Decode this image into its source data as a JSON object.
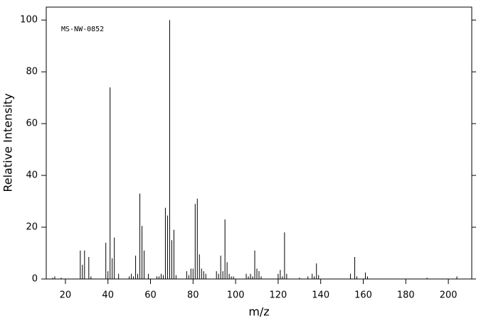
{
  "chart_data": {
    "type": "stick",
    "annotation": "MS-NW-0852",
    "x_label": "m/z",
    "y_label": "Relative Intensity",
    "color": "#000000",
    "x": [
      14,
      15,
      18,
      27,
      28,
      29,
      31,
      32,
      39,
      40,
      41,
      42,
      43,
      45,
      50,
      51,
      52,
      53,
      54,
      55,
      56,
      57,
      59,
      63,
      64,
      65,
      66,
      67,
      68,
      69,
      70,
      71,
      72,
      77,
      78,
      79,
      80,
      81,
      82,
      83,
      84,
      85,
      86,
      91,
      92,
      93,
      94,
      95,
      96,
      97,
      98,
      99,
      105,
      106,
      107,
      108,
      109,
      110,
      111,
      112,
      120,
      121,
      122,
      123,
      124,
      130,
      134,
      136,
      137,
      138,
      139,
      154,
      156,
      157,
      161,
      162,
      190,
      204
    ],
    "values": [
      0.5,
      1,
      0.5,
      11,
      5.5,
      11,
      8.5,
      1,
      14,
      3,
      74,
      8,
      16,
      2,
      1,
      2,
      1,
      9,
      2,
      33,
      20.5,
      11,
      2,
      1,
      1,
      2,
      1.5,
      27.5,
      24.5,
      100,
      15,
      19,
      1.5,
      3,
      1.5,
      4,
      4,
      29,
      31,
      9.5,
      4,
      3,
      2,
      3,
      2,
      9,
      3,
      23,
      6.5,
      2,
      1,
      1,
      2,
      1,
      2,
      1,
      11,
      4,
      3,
      1,
      2,
      3.5,
      1,
      18,
      2,
      0.5,
      1,
      2,
      1,
      6,
      1.5,
      2,
      8.5,
      1,
      2.5,
      1,
      0.5,
      1
    ],
    "xlim": [
      11,
      211
    ],
    "ylim": [
      0,
      105
    ],
    "xticks": [
      20,
      40,
      60,
      80,
      100,
      120,
      140,
      160,
      180,
      200
    ],
    "yticks": [
      0,
      20,
      40,
      60,
      80,
      100
    ]
  }
}
